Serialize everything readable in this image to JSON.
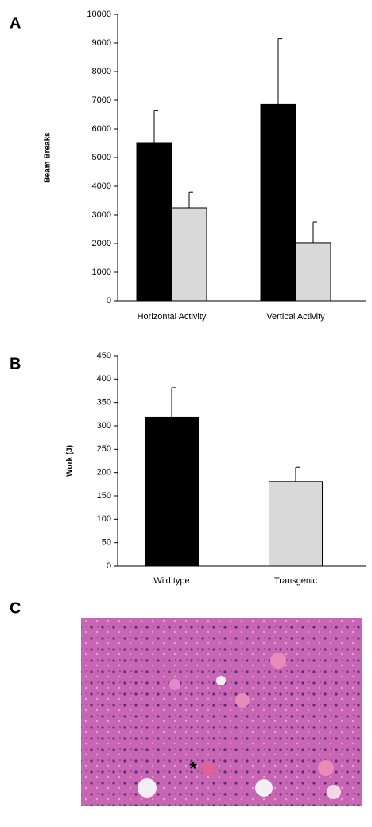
{
  "chart_data": [
    {
      "type": "bar",
      "panel": "A",
      "ylabel": "Beam Breaks",
      "categories": [
        "Horizontal Activity",
        "Vertical Activity"
      ],
      "series": [
        {
          "color": "#000000",
          "values": [
            5500,
            6850
          ],
          "errors": [
            1150,
            2300
          ]
        },
        {
          "color": "#d9d9d9",
          "values": [
            3250,
            2030
          ],
          "errors": [
            550,
            720
          ]
        }
      ],
      "ylim": [
        0,
        10000
      ],
      "yticks": [
        0,
        1000,
        2000,
        3000,
        4000,
        5000,
        6000,
        7000,
        8000,
        9000,
        10000
      ]
    },
    {
      "type": "bar",
      "panel": "B",
      "ylabel": "Work (J)",
      "categories": [
        "Wild type",
        "Transgenic"
      ],
      "values": [
        318,
        181
      ],
      "errors": [
        64,
        30
      ],
      "colors": [
        "#000000",
        "#d9d9d9"
      ],
      "ylim": [
        0,
        450
      ],
      "yticks": [
        0,
        50,
        100,
        150,
        200,
        250,
        300,
        350,
        400,
        450
      ]
    }
  ],
  "panel_c": {
    "label": "C",
    "marker": "*"
  }
}
